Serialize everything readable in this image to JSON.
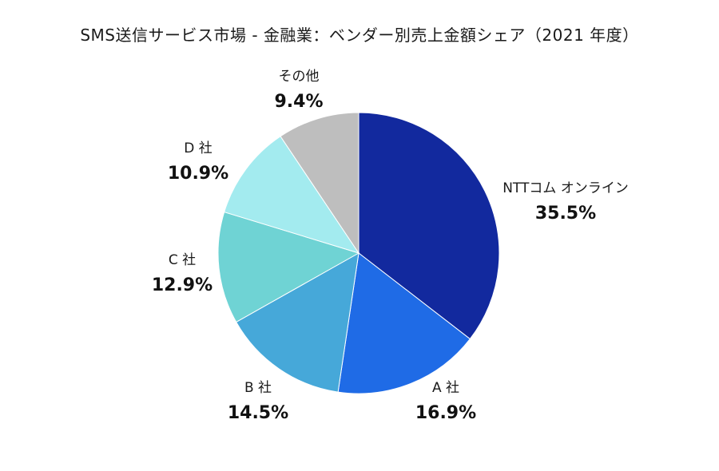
{
  "chart_data": {
    "type": "pie",
    "title": "SMS送信サービス市場 - 金融業：ベンダー別売上金額シェア（2021 年度）",
    "unit": "%",
    "slices": [
      {
        "label": "NTTコム オンライン",
        "value": 35.5,
        "value_text": "35.5%",
        "color": "#12299e"
      },
      {
        "label": "A 社",
        "value": 16.9,
        "value_text": "16.9%",
        "color": "#1f6be6"
      },
      {
        "label": "B 社",
        "value": 14.5,
        "value_text": "14.5%",
        "color": "#46a8d9"
      },
      {
        "label": "C 社",
        "value": 12.9,
        "value_text": "12.9%",
        "color": "#6fd3d4"
      },
      {
        "label": "D 社",
        "value": 10.9,
        "value_text": "10.9%",
        "color": "#a3ebef"
      },
      {
        "label": "その他",
        "value": 9.4,
        "value_text": "9.4%",
        "color": "#bebebe"
      }
    ],
    "start_angle": "12 o'clock",
    "direction": "clockwise",
    "legend": "none"
  }
}
